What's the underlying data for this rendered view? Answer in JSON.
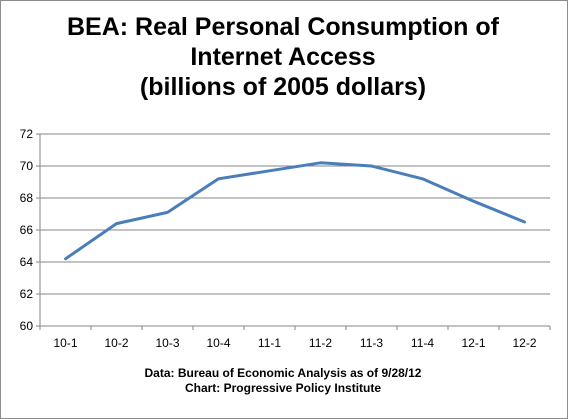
{
  "chart_data": {
    "type": "line",
    "title_lines": [
      "BEA: Real Personal Consumption of",
      "Internet Access",
      "(billions of 2005 dollars)"
    ],
    "categories": [
      "10-1",
      "10-2",
      "10-3",
      "10-4",
      "11-1",
      "11-2",
      "11-3",
      "11-4",
      "12-1",
      "12-2"
    ],
    "series": [
      {
        "values": [
          64.2,
          66.4,
          67.1,
          69.2,
          69.7,
          70.2,
          70.0,
          69.2,
          67.8,
          66.5
        ],
        "color": "#4a7ebb"
      }
    ],
    "ylim": [
      60,
      72
    ],
    "yticks": [
      60,
      62,
      64,
      66,
      68,
      70,
      72
    ],
    "grid": true,
    "legend": "none"
  },
  "notes": [
    "Data: Bureau of Economic Analysis as of 9/28/12",
    "Chart: Progressive Policy Institute"
  ]
}
